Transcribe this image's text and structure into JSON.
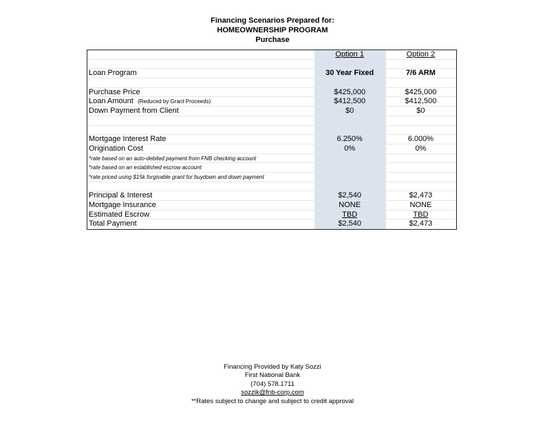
{
  "header": {
    "line1": "Financing Scenarios Prepared for:",
    "line2": "HOMEOWNERSHIP PROGRAM",
    "line3": "Purchase"
  },
  "columns": {
    "option1": "Option 1",
    "option2": "Option 2"
  },
  "rows": {
    "loan_program": {
      "label": "Loan Program",
      "o1": "30 Year Fixed",
      "o2": "7/6 ARM"
    },
    "purchase_price": {
      "label": "Purchase Price",
      "o1": "$425,000",
      "o2": "$425,000"
    },
    "loan_amount": {
      "label": "Loan Amount",
      "note": "(Reduced by Grant Proceeds)",
      "o1": "$412,500",
      "o2": "$412,500"
    },
    "down_payment": {
      "label": "Down Payment from Client",
      "o1": "$0",
      "o2": "$0"
    },
    "rate": {
      "label": "Mortgage Interest Rate",
      "o1": "6.250%",
      "o2": "6.000%"
    },
    "origination": {
      "label": "Origination Cost",
      "o1": "0%",
      "o2": "0%"
    },
    "note1": "*rate based on an auto-debited payment from FNB checking account",
    "note2": "*rate based on an established escrow account",
    "note3": "*rate priced using $15k forgivable grant for buydown and down payment",
    "pi": {
      "label": "Principal & Interest",
      "o1": "$2,540",
      "o2": "$2,473"
    },
    "mi": {
      "label": "Mortgage Insurance",
      "o1": "NONE",
      "o2": "NONE"
    },
    "escrow": {
      "label": "Estimated Escrow",
      "o1": "TBD",
      "o2": "TBD"
    },
    "total": {
      "label": "Total Payment",
      "o1": "$2,540",
      "o2": "$2,473"
    }
  },
  "footer": {
    "line1": "Financing Provided by Katy Sozzi",
    "line2": "First National Bank",
    "line3": "(704) 578.1711",
    "email": "sozzik@fnb-corp.com",
    "disclaimer": "**Rates subject to change and subject to credit approval"
  },
  "colors": {
    "shade": "#dce3ee"
  }
}
